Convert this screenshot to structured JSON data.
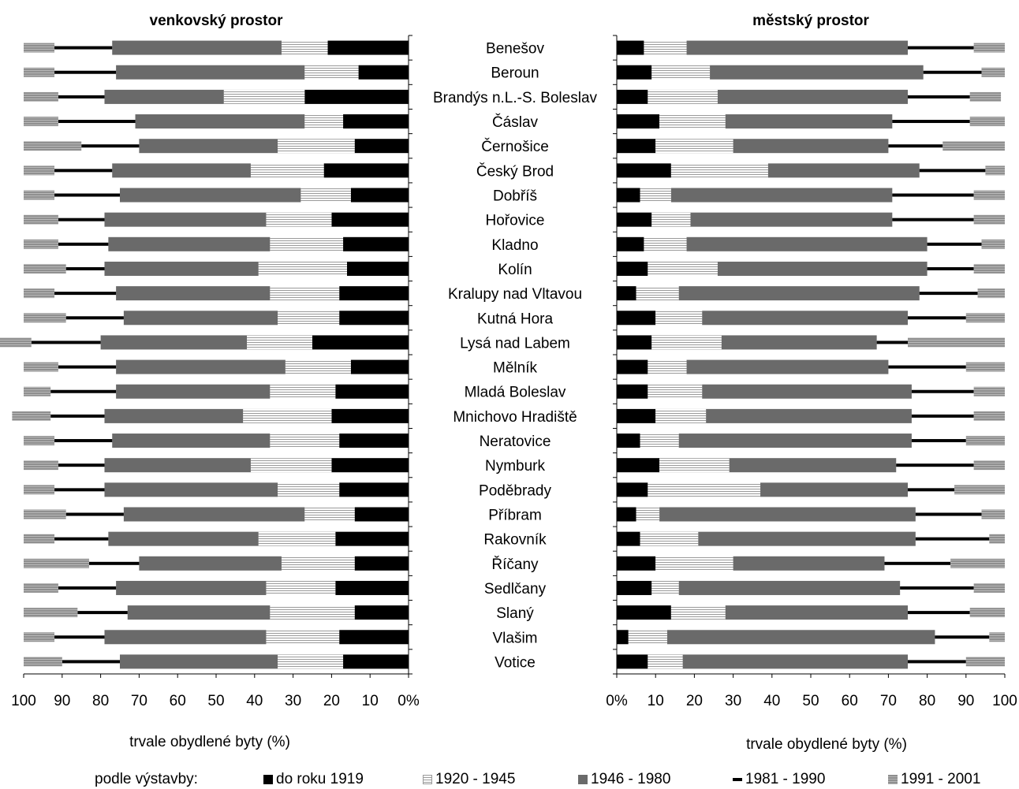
{
  "chart_data": {
    "type": "bar",
    "stacked": true,
    "categories": [
      "Benešov",
      "Beroun",
      "Brandýs n.L.-S. Boleslav",
      "Čáslav",
      "Černošice",
      "Český Brod",
      "Dobříš",
      "Hořovice",
      "Kladno",
      "Kolín",
      "Kralupy nad Vltavou",
      "Kutná Hora",
      "Lysá nad Labem",
      "Mělník",
      "Mladá Boleslav",
      "Mnichovo Hradiště",
      "Neratovice",
      "Nymburk",
      "Poděbrady",
      "Příbram",
      "Rakovník",
      "Říčany",
      "Sedlčany",
      "Slaný",
      "Vlašim",
      "Votice"
    ],
    "legend": {
      "prefix": "podle výstavby:",
      "entries": [
        "do roku 1919",
        "1920 - 1945",
        "1946 - 1980",
        "1981 - 1990",
        "1991 - 2001"
      ],
      "colors": [
        "#000000",
        "#ffffff",
        "#6a6a6a",
        "#000000",
        "#8f8f8f"
      ]
    },
    "panels": [
      {
        "title": "venkovský prostor",
        "xlabel": "trvale obydlené byty (%)",
        "direction": "right-to-left",
        "xlim": [
          0,
          100
        ],
        "ticks": [
          "100",
          "90",
          "80",
          "70",
          "60",
          "50",
          "40",
          "30",
          "20",
          "10",
          "0%"
        ],
        "series": [
          {
            "name": "do roku 1919",
            "values": [
              21,
              13,
              27,
              17,
              14,
              22,
              15,
              20,
              17,
              16,
              18,
              18,
              25,
              15,
              19,
              20,
              18,
              20,
              18,
              14,
              19,
              14,
              19,
              14,
              18,
              17
            ]
          },
          {
            "name": "1920 - 1945",
            "values": [
              12,
              14,
              21,
              10,
              20,
              19,
              13,
              17,
              19,
              23,
              18,
              16,
              17,
              17,
              17,
              23,
              18,
              21,
              16,
              13,
              20,
              19,
              18,
              22,
              19,
              17
            ]
          },
          {
            "name": "1946 - 1980",
            "values": [
              44,
              49,
              31,
              44,
              36,
              36,
              47,
              42,
              42,
              40,
              40,
              40,
              38,
              44,
              40,
              36,
              41,
              38,
              45,
              47,
              39,
              37,
              39,
              37,
              42,
              41
            ]
          },
          {
            "name": "1981 - 1990",
            "values": [
              15,
              16,
              12,
              20,
              15,
              15,
              17,
              12,
              13,
              10,
              16,
              15,
              18,
              15,
              17,
              14,
              15,
              12,
              13,
              15,
              14,
              13,
              15,
              13,
              13,
              15
            ]
          },
          {
            "name": "1991 - 2001",
            "values": [
              8,
              8,
              9,
              9,
              15,
              8,
              8,
              9,
              9,
              11,
              8,
              11,
              9,
              9,
              7,
              10,
              8,
              9,
              8,
              11,
              8,
              17,
              9,
              14,
              8,
              10
            ]
          }
        ]
      },
      {
        "title": "městský prostor",
        "xlabel": "trvale obydlené byty (%)",
        "direction": "left-to-right",
        "xlim": [
          0,
          100
        ],
        "ticks": [
          "0%",
          "10",
          "20",
          "30",
          "40",
          "50",
          "60",
          "70",
          "80",
          "90",
          "100"
        ],
        "series": [
          {
            "name": "do roku 1919",
            "values": [
              7,
              9,
              8,
              11,
              10,
              14,
              6,
              9,
              7,
              8,
              5,
              10,
              9,
              8,
              8,
              10,
              6,
              11,
              8,
              5,
              6,
              10,
              9,
              14,
              3,
              8
            ]
          },
          {
            "name": "1920 - 1945",
            "values": [
              11,
              15,
              18,
              17,
              20,
              25,
              8,
              10,
              11,
              18,
              11,
              12,
              18,
              10,
              14,
              13,
              10,
              18,
              29,
              6,
              15,
              20,
              7,
              14,
              10,
              9
            ]
          },
          {
            "name": "1946 - 1980",
            "values": [
              57,
              55,
              49,
              43,
              40,
              39,
              57,
              52,
              62,
              54,
              62,
              53,
              40,
              52,
              54,
              53,
              60,
              43,
              38,
              66,
              56,
              39,
              57,
              47,
              69,
              58
            ]
          },
          {
            "name": "1981 - 1990",
            "values": [
              17,
              15,
              16,
              20,
              14,
              17,
              21,
              21,
              14,
              12,
              15,
              15,
              8,
              20,
              16,
              16,
              14,
              20,
              12,
              17,
              19,
              17,
              19,
              16,
              14,
              15
            ]
          },
          {
            "name": "1991 - 2001",
            "values": [
              8,
              6,
              8,
              9,
              16,
              5,
              8,
              8,
              6,
              8,
              7,
              10,
              25,
              10,
              8,
              8,
              10,
              8,
              13,
              6,
              4,
              14,
              8,
              9,
              4,
              10
            ]
          }
        ]
      }
    ]
  }
}
